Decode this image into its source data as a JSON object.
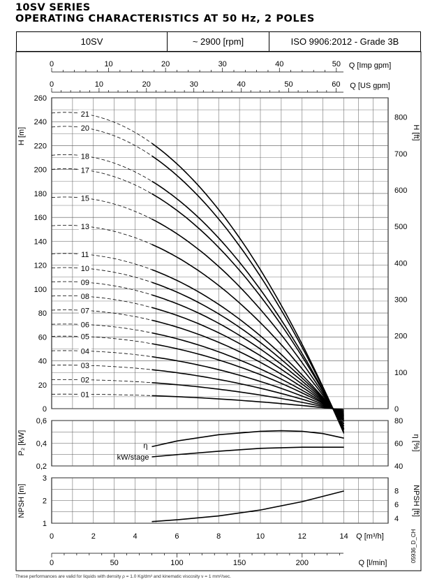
{
  "header": {
    "series": "10SV SERIES",
    "title": "OPERATING CHARACTERISTICS AT 50 Hz, 2 POLES",
    "model": "10SV",
    "speed": "~ 2900 [rpm]",
    "standard": "ISO 9906:2012 - Grade 3B"
  },
  "footnote": "These performances are valid for liquids with density ρ = 1.0 Kg/dm³ and kinematic viscosity ν = 1 mm²/sec.",
  "code": "05936_D_CH",
  "axes": {
    "imp_label": "Q [Imp gpm]",
    "us_label": "Q [US gpm]",
    "h_label": "H [m]",
    "hft_label": "H [ft]",
    "p_label": "P₂ [kW]",
    "eta_label": "η [%]",
    "npsh_label": "NPSH [m]",
    "npshft_label": "NPSH [ft]",
    "q_label": "Q [m³/h]",
    "qlmin_label": "Q [l/min]"
  },
  "chart_data": [
    {
      "type": "line",
      "name": "head",
      "ylim": [
        0,
        260
      ],
      "xlim": [
        0,
        14
      ],
      "x_ticks": [
        0,
        2,
        4,
        6,
        8,
        10,
        12,
        14
      ],
      "y_ticks": [
        0,
        20,
        40,
        60,
        80,
        100,
        120,
        140,
        160,
        180,
        200,
        220,
        240,
        260
      ],
      "right_ticks_ft": [
        0,
        100,
        200,
        300,
        400,
        500,
        600,
        700,
        800
      ],
      "imp_ticks": [
        0,
        10,
        20,
        30,
        40,
        50
      ],
      "us_ticks": [
        0,
        10,
        20,
        30,
        40,
        50,
        60
      ],
      "valid_range_q": [
        4.8,
        14
      ],
      "grid": true,
      "series": [
        {
          "name": "01",
          "stages": 1,
          "h0": 12.1
        },
        {
          "name": "02",
          "stages": 2,
          "h0": 24.2
        },
        {
          "name": "03",
          "stages": 3,
          "h0": 36.3
        },
        {
          "name": "04",
          "stages": 4,
          "h0": 48.4
        },
        {
          "name": "05",
          "stages": 5,
          "h0": 60.5
        },
        {
          "name": "06",
          "stages": 6,
          "h0": 70.6
        },
        {
          "name": "07",
          "stages": 7,
          "h0": 82.4
        },
        {
          "name": "08",
          "stages": 8,
          "h0": 94.2
        },
        {
          "name": "09",
          "stages": 9,
          "h0": 106.0
        },
        {
          "name": "10",
          "stages": 10,
          "h0": 117.7
        },
        {
          "name": "11",
          "stages": 11,
          "h0": 129.5
        },
        {
          "name": "13",
          "stages": 13,
          "h0": 153.0
        },
        {
          "name": "15",
          "stages": 15,
          "h0": 176.6
        },
        {
          "name": "17",
          "stages": 17,
          "h0": 200.2
        },
        {
          "name": "18",
          "stages": 18,
          "h0": 211.9
        },
        {
          "name": "20",
          "stages": 20,
          "h0": 235.5
        },
        {
          "name": "21",
          "stages": 21,
          "h0": 247.2
        }
      ]
    },
    {
      "type": "line",
      "name": "power-efficiency",
      "ylim": [
        0.2,
        0.6
      ],
      "y_ticks": [
        0.2,
        0.4,
        0.6
      ],
      "right_ylim": [
        40,
        80
      ],
      "right_ticks": [
        40,
        60,
        80
      ],
      "series": [
        {
          "name": "η",
          "x": [
            4.8,
            6,
            8,
            10,
            11,
            12,
            13,
            14
          ],
          "y": [
            57,
            62,
            67.5,
            70.5,
            71,
            70.5,
            68.5,
            64.5
          ]
        },
        {
          "name": "kW/stage",
          "x": [
            4.8,
            6,
            8,
            10,
            12,
            14
          ],
          "y": [
            0.28,
            0.3,
            0.33,
            0.355,
            0.365,
            0.365
          ]
        }
      ]
    },
    {
      "type": "line",
      "name": "npsh",
      "ylim": [
        1,
        3
      ],
      "y_ticks": [
        1,
        2,
        3
      ],
      "right_ticks_ft": [
        4,
        6,
        8
      ],
      "qlmin_ticks": [
        0,
        50,
        100,
        150,
        200
      ],
      "series": [
        {
          "name": "NPSH",
          "x": [
            4.8,
            6,
            8,
            10,
            12,
            14
          ],
          "y": [
            1.07,
            1.15,
            1.32,
            1.58,
            1.95,
            2.42
          ]
        }
      ]
    }
  ]
}
